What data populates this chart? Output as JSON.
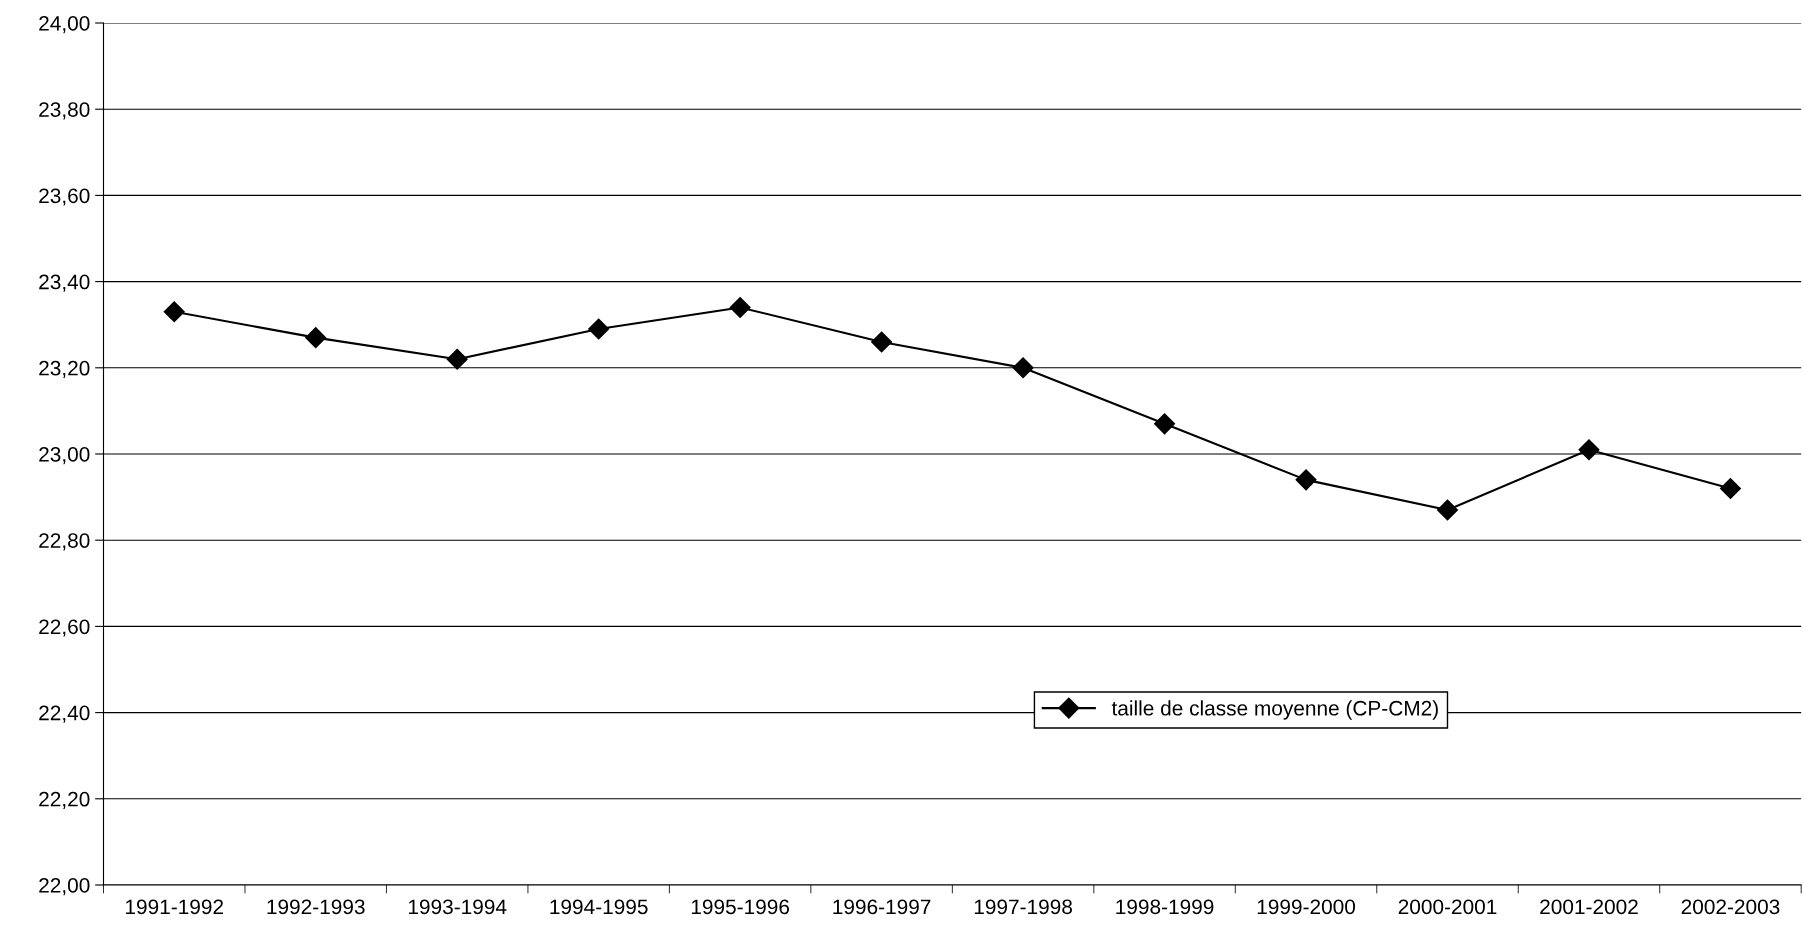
{
  "chart_data": {
    "type": "line",
    "categories": [
      "1991-1992",
      "1992-1993",
      "1993-1994",
      "1994-1995",
      "1995-1996",
      "1996-1997",
      "1997-1998",
      "1998-1999",
      "1999-2000",
      "2000-2001",
      "2001-2002",
      "2002-2003"
    ],
    "series": [
      {
        "name": "taille de classe moyenne (CP-CM2)",
        "color": "#000000",
        "values": [
          23.33,
          23.27,
          23.22,
          23.29,
          23.34,
          23.26,
          23.2,
          23.07,
          22.94,
          22.87,
          23.01,
          22.92
        ]
      }
    ],
    "ylim": [
      22.0,
      24.0
    ],
    "yticks": [
      {
        "value": 22.0,
        "label": "22,00"
      },
      {
        "value": 22.2,
        "label": "22,20"
      },
      {
        "value": 22.4,
        "label": "22,40"
      },
      {
        "value": 22.6,
        "label": "22,60"
      },
      {
        "value": 22.8,
        "label": "22,80"
      },
      {
        "value": 23.0,
        "label": "23,00"
      },
      {
        "value": 23.2,
        "label": "23,20"
      },
      {
        "value": 23.4,
        "label": "23,40"
      },
      {
        "value": 23.6,
        "label": "23,60"
      },
      {
        "value": 23.8,
        "label": "23,80"
      },
      {
        "value": 24.0,
        "label": "24,00"
      }
    ],
    "grid": "y",
    "legend": "bottom",
    "marker": "diamond",
    "line_style": "solid"
  }
}
